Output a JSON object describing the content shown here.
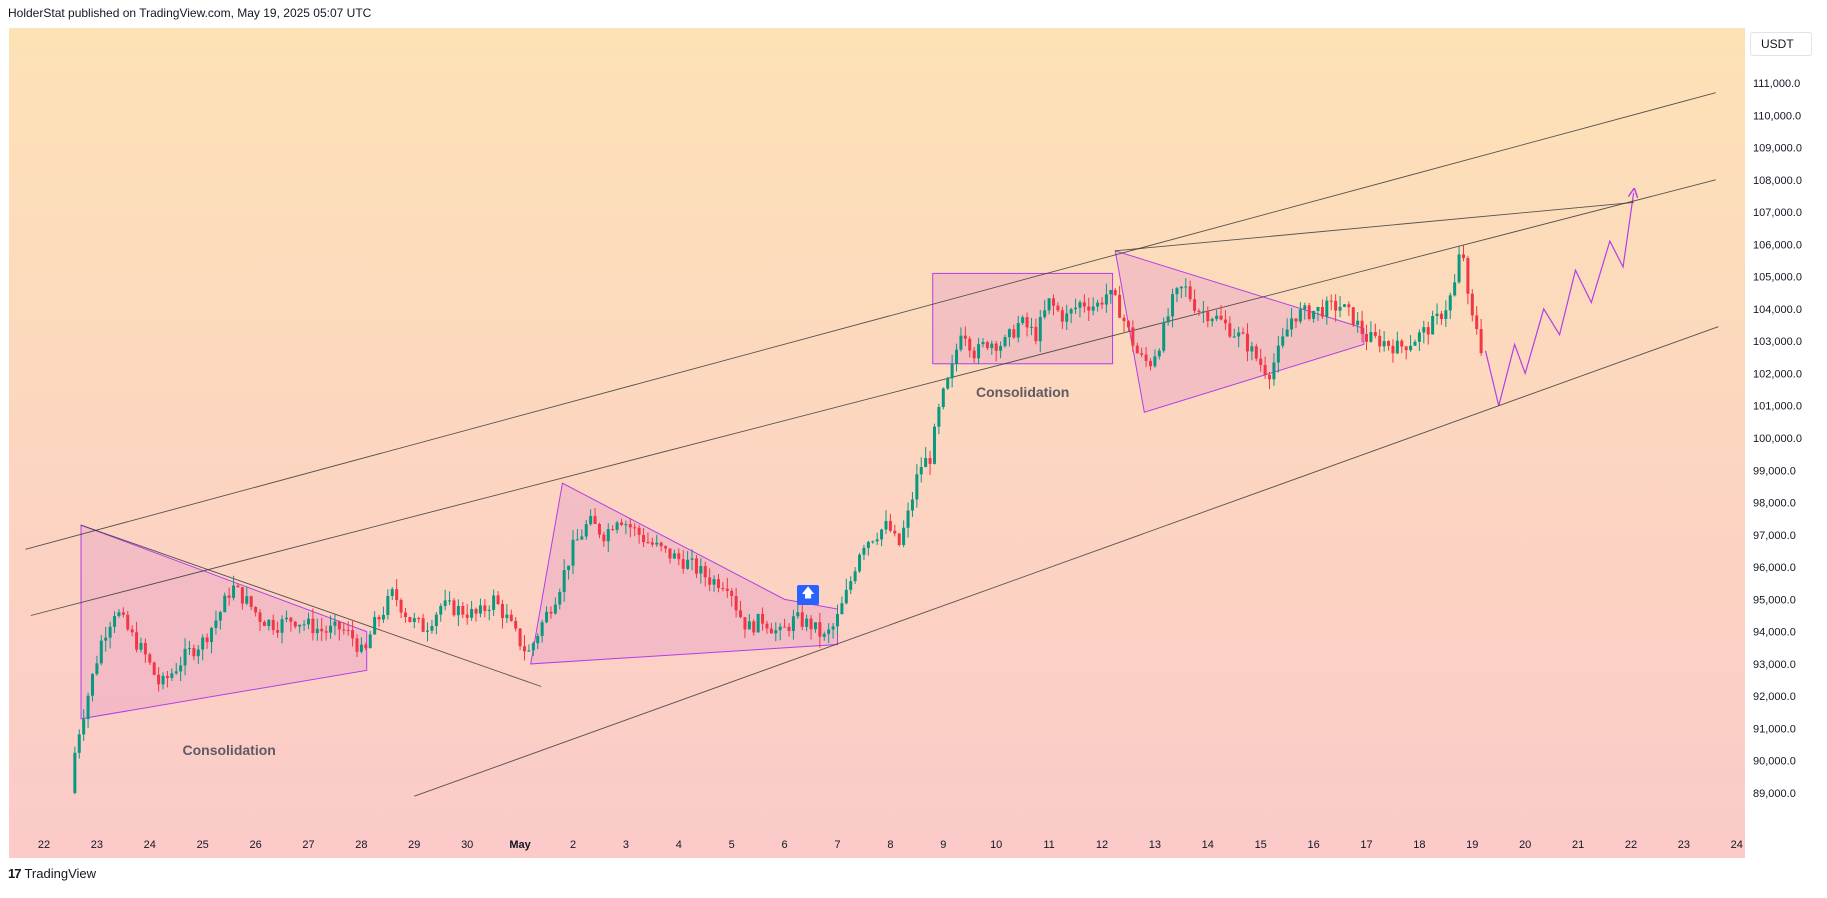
{
  "header": {
    "published": "HolderStat published on TradingView.com, May 19, 2025 05:07 UTC"
  },
  "currency": "USDT",
  "footer": {
    "brand": "TradingView",
    "logo_icon": "tradingview-logo-icon"
  },
  "annotations": {
    "consolidation_1": "Consolidation",
    "consolidation_2": "Consolidation",
    "signal_icon": "up-arrow-icon"
  },
  "colors": {
    "bg_top": "#fde2b6",
    "bg_bottom": "#fbcac9",
    "up": "#089981",
    "down": "#f23645",
    "pattern_stroke": "#b23ee8",
    "pattern_fill": "#e8a2c8",
    "trendline": "#3a3a3a"
  },
  "chart_data": {
    "type": "candlestick",
    "symbol_quote": "USDT",
    "ylim": [
      89000,
      112000
    ],
    "y_ticks": [
      "111,000.0",
      "110,000.0",
      "109,000.0",
      "108,000.0",
      "107,000.0",
      "106,000.0",
      "105,000.0",
      "104,000.0",
      "103,000.0",
      "102,000.0",
      "101,000.0",
      "100,000.0",
      "99,000.0",
      "98,000.0",
      "97,000.0",
      "96,000.0",
      "95,000.0",
      "94,000.0",
      "93,000.0",
      "92,000.0",
      "91,000.0",
      "90,000.0",
      "89,000.0"
    ],
    "x_ticks": [
      "22",
      "23",
      "24",
      "25",
      "26",
      "27",
      "28",
      "29",
      "30",
      "May",
      "2",
      "3",
      "4",
      "5",
      "6",
      "7",
      "8",
      "9",
      "10",
      "11",
      "12",
      "13",
      "14",
      "15",
      "16",
      "17",
      "18",
      "19",
      "20",
      "21",
      "22",
      "23",
      "24"
    ],
    "price_path": [
      [
        22.5,
        89000
      ],
      [
        22.6,
        90500
      ],
      [
        22.75,
        91500
      ],
      [
        22.9,
        92500
      ],
      [
        23.1,
        93800
      ],
      [
        23.35,
        94700
      ],
      [
        23.6,
        94000
      ],
      [
        23.9,
        93300
      ],
      [
        24.2,
        92300
      ],
      [
        24.45,
        92800
      ],
      [
        24.7,
        93300
      ],
      [
        25.0,
        93700
      ],
      [
        25.3,
        94500
      ],
      [
        25.55,
        95400
      ],
      [
        25.8,
        95000
      ],
      [
        26.1,
        94400
      ],
      [
        26.4,
        94200
      ],
      [
        26.7,
        94400
      ],
      [
        27.0,
        94200
      ],
      [
        27.3,
        94000
      ],
      [
        27.6,
        94100
      ],
      [
        27.85,
        93800
      ],
      [
        28.05,
        93200
      ],
      [
        28.2,
        94100
      ],
      [
        28.4,
        94600
      ],
      [
        28.6,
        95200
      ],
      [
        28.9,
        94400
      ],
      [
        29.2,
        94100
      ],
      [
        29.5,
        94800
      ],
      [
        29.8,
        94700
      ],
      [
        30.2,
        94500
      ],
      [
        30.5,
        95000
      ],
      [
        30.75,
        94400
      ],
      [
        30.95,
        93800
      ],
      [
        31.15,
        93300
      ],
      [
        31.4,
        94200
      ],
      [
        31.7,
        95200
      ],
      [
        32.0,
        96600
      ],
      [
        32.3,
        97400
      ],
      [
        32.6,
        97000
      ],
      [
        32.85,
        97600
      ],
      [
        33.05,
        97300
      ],
      [
        33.4,
        96800
      ],
      [
        33.8,
        96400
      ],
      [
        34.2,
        96100
      ],
      [
        34.6,
        95600
      ],
      [
        34.95,
        95500
      ],
      [
        35.1,
        94700
      ],
      [
        35.3,
        94100
      ],
      [
        35.6,
        94400
      ],
      [
        35.9,
        93900
      ],
      [
        36.2,
        94400
      ],
      [
        36.5,
        94200
      ],
      [
        36.75,
        93800
      ],
      [
        36.95,
        94200
      ],
      [
        37.2,
        95300
      ],
      [
        37.45,
        96700
      ],
      [
        37.7,
        97000
      ],
      [
        37.95,
        97300
      ],
      [
        38.15,
        96600
      ],
      [
        38.35,
        97700
      ],
      [
        38.55,
        99100
      ],
      [
        38.75,
        99400
      ],
      [
        38.95,
        101100
      ],
      [
        39.15,
        102000
      ],
      [
        39.35,
        103500
      ],
      [
        39.6,
        102600
      ],
      [
        39.85,
        103000
      ],
      [
        40.15,
        102900
      ],
      [
        40.45,
        103600
      ],
      [
        40.75,
        103200
      ],
      [
        41.0,
        104200
      ],
      [
        41.3,
        103700
      ],
      [
        41.6,
        104200
      ],
      [
        41.9,
        104100
      ],
      [
        42.1,
        104500
      ],
      [
        42.3,
        104100
      ],
      [
        42.5,
        103300
      ],
      [
        42.7,
        102500
      ],
      [
        42.9,
        102300
      ],
      [
        43.1,
        103000
      ],
      [
        43.35,
        104300
      ],
      [
        43.55,
        104700
      ],
      [
        43.8,
        104000
      ],
      [
        44.1,
        103800
      ],
      [
        44.4,
        103400
      ],
      [
        44.7,
        103000
      ],
      [
        44.95,
        102400
      ],
      [
        45.15,
        102000
      ],
      [
        45.35,
        102700
      ],
      [
        45.6,
        103800
      ],
      [
        45.9,
        103900
      ],
      [
        46.2,
        104000
      ],
      [
        46.5,
        104100
      ],
      [
        46.75,
        103700
      ],
      [
        47.0,
        103100
      ],
      [
        47.3,
        103000
      ],
      [
        47.6,
        102800
      ],
      [
        47.85,
        103000
      ],
      [
        48.1,
        103300
      ],
      [
        48.35,
        103700
      ],
      [
        48.55,
        104200
      ],
      [
        48.7,
        104900
      ],
      [
        48.8,
        106200
      ],
      [
        48.9,
        104500
      ],
      [
        48.95,
        103800
      ],
      [
        49.1,
        103400
      ],
      [
        49.18,
        102700
      ]
    ],
    "patterns": {
      "triangle_1": [
        [
          22.7,
          97300
        ],
        [
          22.7,
          91300
        ],
        [
          28.1,
          92800
        ],
        [
          28.1,
          94000
        ]
      ],
      "wedge_2": [
        [
          31.2,
          93000
        ],
        [
          31.8,
          98600
        ],
        [
          36.0,
          95000
        ],
        [
          37.0,
          94700
        ],
        [
          37.0,
          93600
        ]
      ],
      "consolidation_box": [
        [
          38.8,
          102300
        ],
        [
          42.2,
          105100
        ]
      ],
      "triangle_3": [
        [
          42.25,
          105800
        ],
        [
          42.8,
          100800
        ],
        [
          46.95,
          102900
        ],
        [
          46.95,
          103400
        ]
      ],
      "projection": [
        [
          49.25,
          102700
        ],
        [
          49.5,
          101000
        ],
        [
          49.8,
          102900
        ],
        [
          50.0,
          102000
        ],
        [
          50.35,
          104000
        ],
        [
          50.65,
          103200
        ],
        [
          50.95,
          105200
        ],
        [
          51.25,
          104200
        ],
        [
          51.6,
          106100
        ],
        [
          51.85,
          105300
        ],
        [
          52.05,
          107600
        ]
      ]
    },
    "trendlines": [
      [
        [
          21.65,
          96550
        ],
        [
          53.6,
          110700
        ]
      ],
      [
        [
          21.75,
          94500
        ],
        [
          53.6,
          108000
        ]
      ],
      [
        [
          22.7,
          97300
        ],
        [
          31.4,
          92300
        ]
      ],
      [
        [
          29.0,
          88900
        ],
        [
          53.65,
          103450
        ]
      ],
      [
        [
          42.25,
          105800
        ],
        [
          52.05,
          107300
        ]
      ]
    ]
  }
}
